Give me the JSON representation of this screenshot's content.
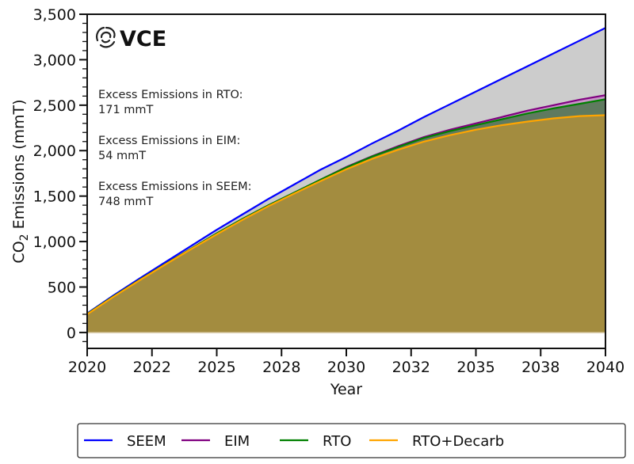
{
  "chart_data": {
    "type": "area",
    "title": "",
    "xlabel": "Year",
    "ylabel": "CO2 Emissions (mmT)",
    "ylabel_parts": {
      "pre": "CO",
      "sub": "2",
      "post": " Emissions (mmT)"
    },
    "xlim": [
      2020,
      2040
    ],
    "ylim": [
      -175,
      3500
    ],
    "x_ticks": [
      2020,
      2022.5,
      2025,
      2027.5,
      2030,
      2032.5,
      2035,
      2037.5,
      2040
    ],
    "x_tick_labels": [
      "2020",
      "2022",
      "2025",
      "2028",
      "2030",
      "2032",
      "2035",
      "2038",
      "2040"
    ],
    "y_ticks": [
      0,
      500,
      1000,
      1500,
      2000,
      2500,
      3000,
      3500
    ],
    "y_tick_labels": [
      "0",
      "500",
      "1,000",
      "1,500",
      "2,000",
      "2,500",
      "3,000",
      "3,500"
    ],
    "grid": false,
    "legend_position": "bottom",
    "x": [
      2020,
      2021,
      2022,
      2023,
      2024,
      2025,
      2026,
      2027,
      2028,
      2029,
      2030,
      2031,
      2032,
      2033,
      2034,
      2035,
      2036,
      2037,
      2038,
      2039,
      2040
    ],
    "series": [
      {
        "name": "SEEM",
        "color": "#0000ff",
        "fill": "#cccccc",
        "values": [
          210,
          405,
          590,
          770,
          950,
          1130,
          1300,
          1470,
          1630,
          1790,
          1930,
          2080,
          2220,
          2370,
          2510,
          2650,
          2790,
          2930,
          3070,
          3210,
          3350
        ]
      },
      {
        "name": "EIM",
        "color": "#800080",
        "fill": "#c896c8",
        "values": [
          205,
          395,
          575,
          750,
          920,
          1090,
          1250,
          1400,
          1540,
          1680,
          1820,
          1940,
          2050,
          2150,
          2230,
          2300,
          2370,
          2440,
          2500,
          2560,
          2610
        ]
      },
      {
        "name": "RTO",
        "color": "#008000",
        "fill": "#5f7a5f",
        "values": [
          205,
          395,
          575,
          750,
          920,
          1090,
          1250,
          1400,
          1540,
          1680,
          1815,
          1935,
          2040,
          2140,
          2215,
          2280,
          2345,
          2410,
          2465,
          2515,
          2565
        ]
      },
      {
        "name": "RTO+Decarb",
        "color": "#ffa500",
        "fill": "#a38c3f",
        "values": [
          200,
          390,
          570,
          745,
          915,
          1080,
          1240,
          1390,
          1530,
          1665,
          1795,
          1910,
          2010,
          2100,
          2170,
          2230,
          2280,
          2320,
          2355,
          2380,
          2390
        ]
      }
    ],
    "annotations": [
      {
        "label": "Excess Emissions in RTO:",
        "value": "171 mmT"
      },
      {
        "label": "Excess Emissions in EIM:",
        "value": "54 mmT"
      },
      {
        "label": "Excess Emissions in SEEM:",
        "value": "748 mmT"
      }
    ]
  },
  "logo": {
    "text": "VCE",
    "icon": "swirl-icon"
  }
}
